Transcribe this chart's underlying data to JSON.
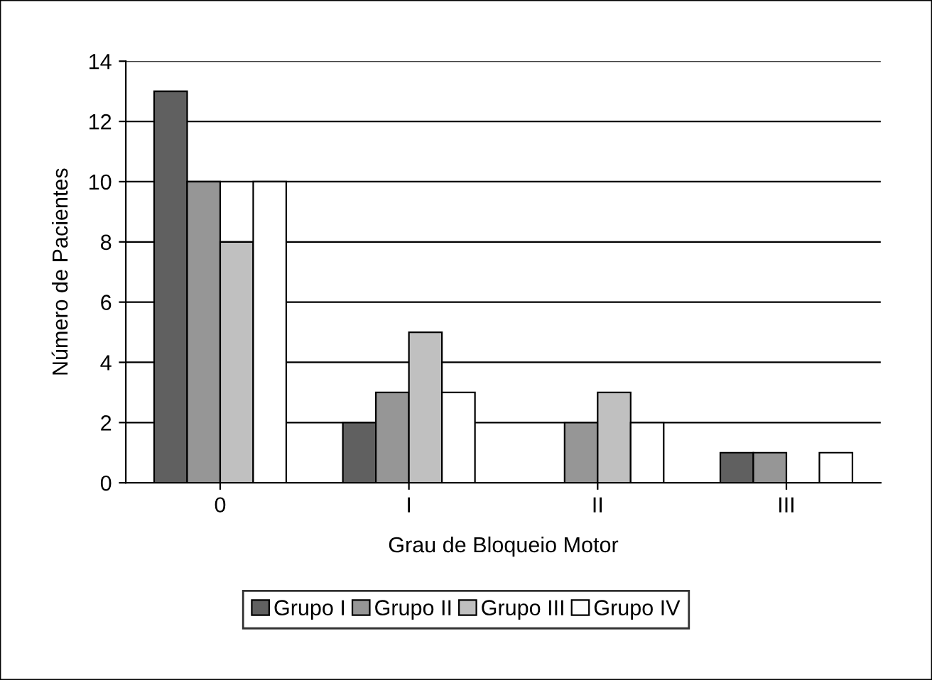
{
  "chart_data": {
    "type": "bar",
    "xlabel": "Grau de Bloqueio Motor",
    "ylabel": "Número de Pacientes",
    "categories": [
      "0",
      "I",
      "II",
      "III"
    ],
    "series": [
      {
        "name": "Grupo I",
        "color": "#606060",
        "values": [
          13,
          2,
          0,
          1
        ]
      },
      {
        "name": "Grupo II",
        "color": "#969696",
        "values": [
          10,
          3,
          2,
          1
        ]
      },
      {
        "name": "Grupo III",
        "color": "#c0c0c0",
        "values": [
          8,
          5,
          3,
          0
        ]
      },
      {
        "name": "Grupo IV",
        "color": "#ffffff",
        "values": [
          10,
          3,
          2,
          1
        ]
      }
    ],
    "ylim": [
      0,
      14
    ],
    "yticks": [
      0,
      2,
      4,
      6,
      8,
      10,
      12,
      14
    ],
    "grid": "y",
    "legend": "bottom"
  }
}
